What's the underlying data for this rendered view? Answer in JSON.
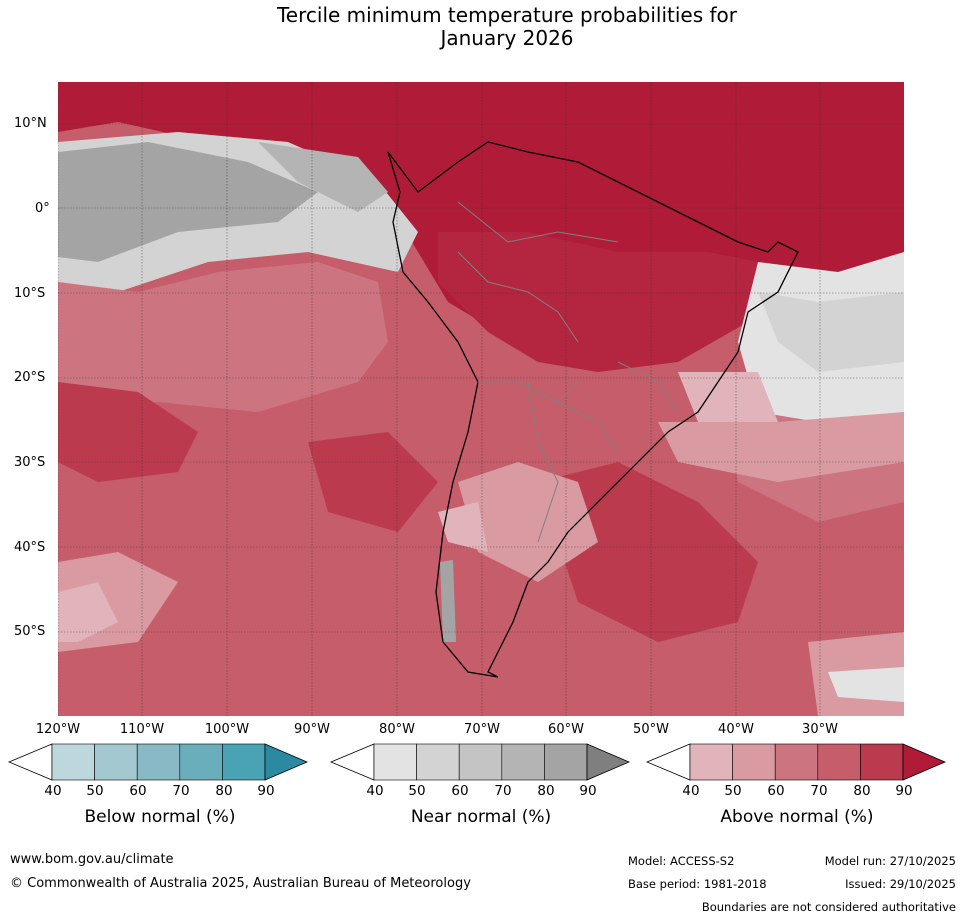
{
  "title": {
    "line1": "Tercile minimum temperature probabilities for",
    "line2": "January 2026"
  },
  "latitude_labels": [
    "10°N",
    "0°",
    "10°S",
    "20°S",
    "30°S",
    "40°S",
    "50°S"
  ],
  "longitude_labels": [
    "120°W",
    "110°W",
    "100°W",
    "90°W",
    "80°W",
    "70°W",
    "60°W",
    "50°W",
    "40°W",
    "30°W"
  ],
  "legends": [
    {
      "title": "Below normal (%)",
      "ticks": [
        "40",
        "50",
        "60",
        "70",
        "80",
        "90"
      ],
      "colors": [
        "#ffffff",
        "#bcd8dd",
        "#a3c8cf",
        "#88b9c4",
        "#6aaebc",
        "#4aa3b4",
        "#2b8aa1"
      ]
    },
    {
      "title": "Near normal (%)",
      "ticks": [
        "40",
        "50",
        "60",
        "70",
        "80",
        "90"
      ],
      "colors": [
        "#ffffff",
        "#e3e3e3",
        "#d3d3d3",
        "#c4c4c4",
        "#b4b4b4",
        "#a4a4a4",
        "#7f7f7f"
      ]
    },
    {
      "title": "Above normal (%)",
      "ticks": [
        "40",
        "50",
        "60",
        "70",
        "80",
        "90"
      ],
      "colors": [
        "#ffffff",
        "#e0b4ba",
        "#d99aa2",
        "#cc7580",
        "#c55d6a",
        "#bb3a4e",
        "#b01c38"
      ]
    }
  ],
  "footer": {
    "website": "www.bom.gov.au/climate",
    "copyright": "© Commonwealth of Australia 2025, Australian Bureau of Meteorology",
    "model": "Model: ACCESS-S2",
    "base_period": "Base period: 1981-2018",
    "model_run": "Model run: 27/10/2025",
    "issued": "Issued: 29/10/2025",
    "disclaimer": "Boundaries are not considered authoritative"
  }
}
